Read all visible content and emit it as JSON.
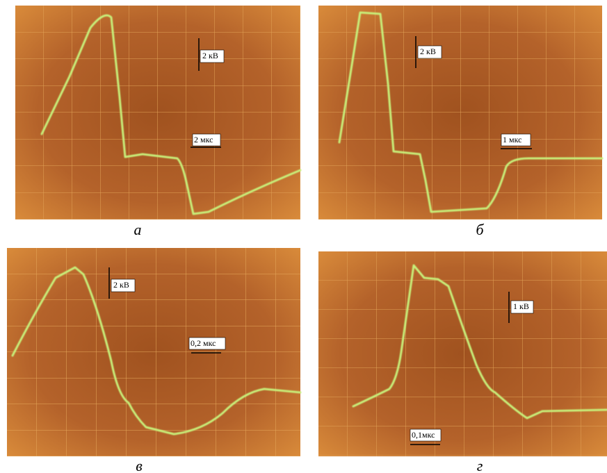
{
  "panels": [
    {
      "caption": "а",
      "volt_scale": "2 кВ",
      "time_scale": "2 мкс"
    },
    {
      "caption": "б",
      "volt_scale": "2 кВ",
      "time_scale": "1 мкс"
    },
    {
      "caption": "в",
      "volt_scale": "2 кВ",
      "time_scale": "0,2 мкс"
    },
    {
      "caption": "г",
      "volt_scale": "1 кВ",
      "time_scale": "0,1мкс"
    }
  ]
}
